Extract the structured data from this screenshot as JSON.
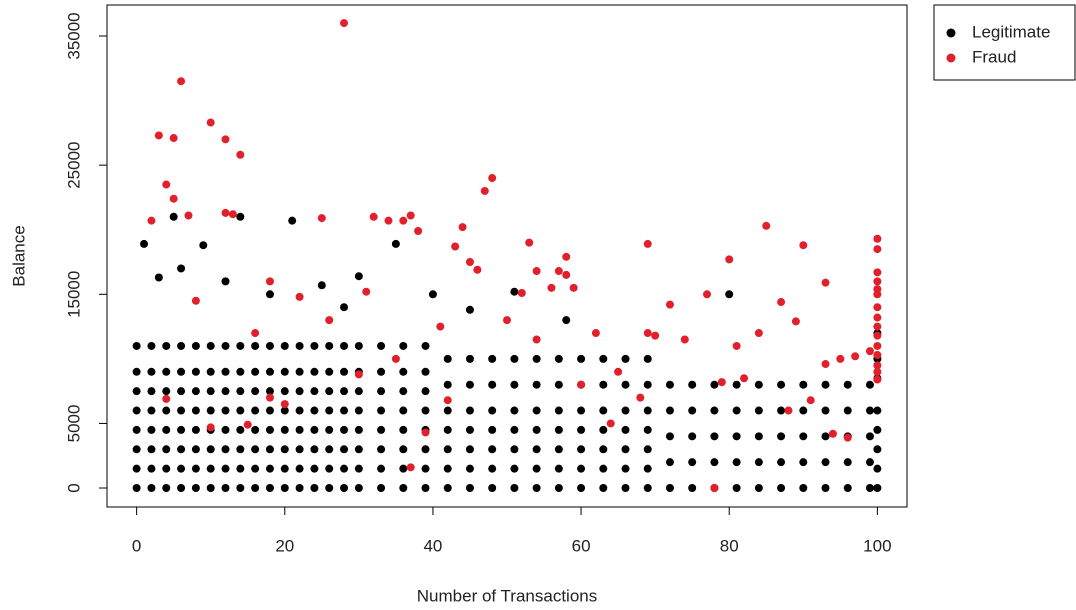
{
  "chart_data": {
    "type": "scatter",
    "xlabel": "Number of Transactions",
    "ylabel": "Balance",
    "xlim": [
      -4,
      104
    ],
    "ylim": [
      -1470,
      37400
    ],
    "xticks": [
      0,
      20,
      40,
      60,
      80,
      100
    ],
    "yticks": [
      0,
      5000,
      15000,
      25000,
      35000
    ],
    "legend": "outside-top-right",
    "series": [
      {
        "name": "Legitimate",
        "color": "#000000",
        "x": [
          0,
          0,
          0,
          0,
          0,
          0,
          0,
          0,
          2,
          2,
          2,
          2,
          2,
          2,
          2,
          2,
          4,
          4,
          4,
          4,
          4,
          4,
          4,
          4,
          6,
          6,
          6,
          6,
          6,
          6,
          6,
          6,
          8,
          8,
          8,
          8,
          8,
          8,
          8,
          8,
          10,
          10,
          10,
          10,
          10,
          10,
          10,
          10,
          12,
          12,
          12,
          12,
          12,
          12,
          12,
          12,
          14,
          14,
          14,
          14,
          14,
          14,
          14,
          14,
          16,
          16,
          16,
          16,
          16,
          16,
          16,
          16,
          18,
          18,
          18,
          18,
          18,
          18,
          18,
          18,
          20,
          20,
          20,
          20,
          20,
          20,
          20,
          20,
          22,
          22,
          22,
          22,
          22,
          22,
          22,
          22,
          24,
          24,
          24,
          24,
          24,
          24,
          24,
          24,
          26,
          26,
          26,
          26,
          26,
          26,
          26,
          26,
          28,
          28,
          28,
          28,
          28,
          28,
          28,
          28,
          30,
          30,
          30,
          30,
          30,
          30,
          30,
          30,
          33,
          33,
          33,
          33,
          33,
          33,
          33,
          33,
          36,
          36,
          36,
          36,
          36,
          36,
          36,
          36,
          39,
          39,
          39,
          39,
          39,
          39,
          39,
          39,
          1,
          5,
          9,
          14,
          21,
          35,
          12,
          18,
          28,
          30,
          6,
          3,
          25,
          40,
          45,
          51,
          58,
          80,
          100,
          42,
          42,
          42,
          42,
          42,
          42,
          42,
          45,
          45,
          45,
          45,
          45,
          45,
          45,
          48,
          48,
          48,
          48,
          48,
          48,
          48,
          51,
          51,
          51,
          51,
          51,
          51,
          51,
          54,
          54,
          54,
          54,
          54,
          54,
          54,
          57,
          57,
          57,
          57,
          57,
          57,
          57,
          60,
          60,
          60,
          60,
          60,
          60,
          60,
          63,
          63,
          63,
          63,
          63,
          63,
          63,
          66,
          66,
          66,
          66,
          66,
          66,
          66,
          69,
          69,
          69,
          69,
          69,
          69,
          69,
          72,
          72,
          72,
          72,
          72,
          75,
          75,
          75,
          75,
          75,
          78,
          78,
          78,
          78,
          78,
          81,
          81,
          81,
          81,
          81,
          84,
          84,
          84,
          84,
          84,
          87,
          87,
          87,
          87,
          87,
          90,
          90,
          90,
          90,
          90,
          93,
          93,
          93,
          93,
          93,
          96,
          96,
          96,
          96,
          96,
          99,
          99,
          99,
          99,
          99,
          100,
          100,
          100,
          100,
          100,
          100,
          100
        ],
        "values": [
          0,
          1500,
          3000,
          4500,
          6000,
          7500,
          9000,
          11000,
          0,
          1500,
          3000,
          4500,
          6000,
          7500,
          9000,
          11000,
          0,
          1500,
          3000,
          4500,
          6000,
          7500,
          9000,
          11000,
          0,
          1500,
          3000,
          4500,
          6000,
          7500,
          9000,
          11000,
          0,
          1500,
          3000,
          4500,
          6000,
          7500,
          9000,
          11000,
          0,
          1500,
          3000,
          4500,
          6000,
          7500,
          9000,
          11000,
          0,
          1500,
          3000,
          4500,
          6000,
          7500,
          9000,
          11000,
          0,
          1500,
          3000,
          4500,
          6000,
          7500,
          9000,
          11000,
          0,
          1500,
          3000,
          4500,
          6000,
          7500,
          9000,
          11000,
          0,
          1500,
          3000,
          4500,
          6000,
          7500,
          9000,
          11000,
          0,
          1500,
          3000,
          4500,
          6000,
          7500,
          9000,
          11000,
          0,
          1500,
          3000,
          4500,
          6000,
          7500,
          9000,
          11000,
          0,
          1500,
          3000,
          4500,
          6000,
          7500,
          9000,
          11000,
          0,
          1500,
          3000,
          4500,
          6000,
          7500,
          9000,
          11000,
          0,
          1500,
          3000,
          4500,
          6000,
          7500,
          9000,
          11000,
          0,
          1500,
          3000,
          4500,
          6000,
          7500,
          9000,
          11000,
          0,
          1500,
          3000,
          4500,
          6000,
          7500,
          9000,
          11000,
          0,
          1500,
          3000,
          4500,
          6000,
          7500,
          9000,
          11000,
          0,
          1500,
          3000,
          4500,
          6000,
          7500,
          9000,
          11000,
          18900,
          21000,
          18800,
          21000,
          20700,
          18900,
          16000,
          15000,
          14000,
          16400,
          17000,
          16300,
          15700,
          15000,
          13800,
          15200,
          13000,
          15000,
          12000,
          0,
          1500,
          3000,
          4500,
          6000,
          8000,
          10000,
          0,
          1500,
          3000,
          4500,
          6000,
          8000,
          10000,
          0,
          1500,
          3000,
          4500,
          6000,
          8000,
          10000,
          0,
          1500,
          3000,
          4500,
          6000,
          8000,
          10000,
          0,
          1500,
          3000,
          4500,
          6000,
          8000,
          10000,
          0,
          1500,
          3000,
          4500,
          6000,
          8000,
          10000,
          0,
          1500,
          3000,
          4500,
          6000,
          8000,
          10000,
          0,
          1500,
          3000,
          4500,
          6000,
          8000,
          10000,
          0,
          1500,
          3000,
          4500,
          6000,
          8000,
          10000,
          0,
          1500,
          3000,
          4500,
          6000,
          8000,
          10000,
          0,
          2000,
          4000,
          6000,
          8000,
          0,
          2000,
          4000,
          6000,
          8000,
          0,
          2000,
          4000,
          6000,
          8000,
          0,
          2000,
          4000,
          6000,
          8000,
          0,
          2000,
          4000,
          6000,
          8000,
          0,
          2000,
          4000,
          6000,
          8000,
          0,
          2000,
          4000,
          6000,
          8000,
          0,
          2000,
          4000,
          6000,
          8000,
          0,
          2000,
          4000,
          6000,
          8000,
          0,
          2000,
          4000,
          6000,
          8000,
          0,
          1500,
          3000,
          4500,
          6000,
          8500,
          10000
        ]
      },
      {
        "name": "Fraud",
        "color": "#e2202c",
        "x": [
          28,
          6,
          3,
          10,
          12,
          5,
          14,
          4,
          5,
          47,
          48,
          85,
          2,
          7,
          12,
          13,
          25,
          32,
          34,
          36,
          37,
          38,
          44,
          43,
          53,
          69,
          90,
          100,
          100,
          58,
          45,
          46,
          80,
          54,
          57,
          58,
          100,
          100,
          100,
          100,
          56,
          59,
          52,
          77,
          93,
          87,
          72,
          100,
          100,
          100,
          100,
          100,
          100,
          100,
          100,
          100,
          69,
          70,
          95,
          97,
          99,
          89,
          84,
          81,
          79,
          82,
          91,
          94,
          96,
          93,
          78,
          60,
          65,
          68,
          42,
          39,
          30,
          20,
          18,
          4,
          10,
          15,
          37,
          35,
          26,
          22,
          18,
          8,
          16,
          31,
          41,
          50,
          54,
          62,
          74,
          88,
          64
        ],
        "values": [
          36000,
          31500,
          27300,
          28300,
          27000,
          27100,
          25800,
          23500,
          22400,
          23000,
          24000,
          20300,
          20700,
          21100,
          21300,
          21200,
          20900,
          21000,
          20700,
          20700,
          21100,
          19900,
          20200,
          18700,
          19000,
          18900,
          18800,
          19300,
          18500,
          17900,
          17500,
          16900,
          17700,
          16800,
          16800,
          16500,
          16700,
          16000,
          15400,
          15000,
          15500,
          15500,
          15100,
          15000,
          15900,
          14400,
          14200,
          14000,
          13200,
          12500,
          11800,
          11000,
          10300,
          9500,
          9000,
          8400,
          12000,
          11800,
          10000,
          10200,
          10600,
          12900,
          12000,
          11000,
          8200,
          8500,
          6800,
          4200,
          3900,
          9600,
          0,
          8000,
          9000,
          7000,
          6800,
          4300,
          8800,
          6500,
          7000,
          6900,
          4700,
          4900,
          1600,
          10000,
          13000,
          14800,
          16000,
          14500,
          12000,
          15200,
          12500,
          13000,
          11500,
          12000,
          11500,
          6000,
          5000
        ]
      }
    ]
  }
}
